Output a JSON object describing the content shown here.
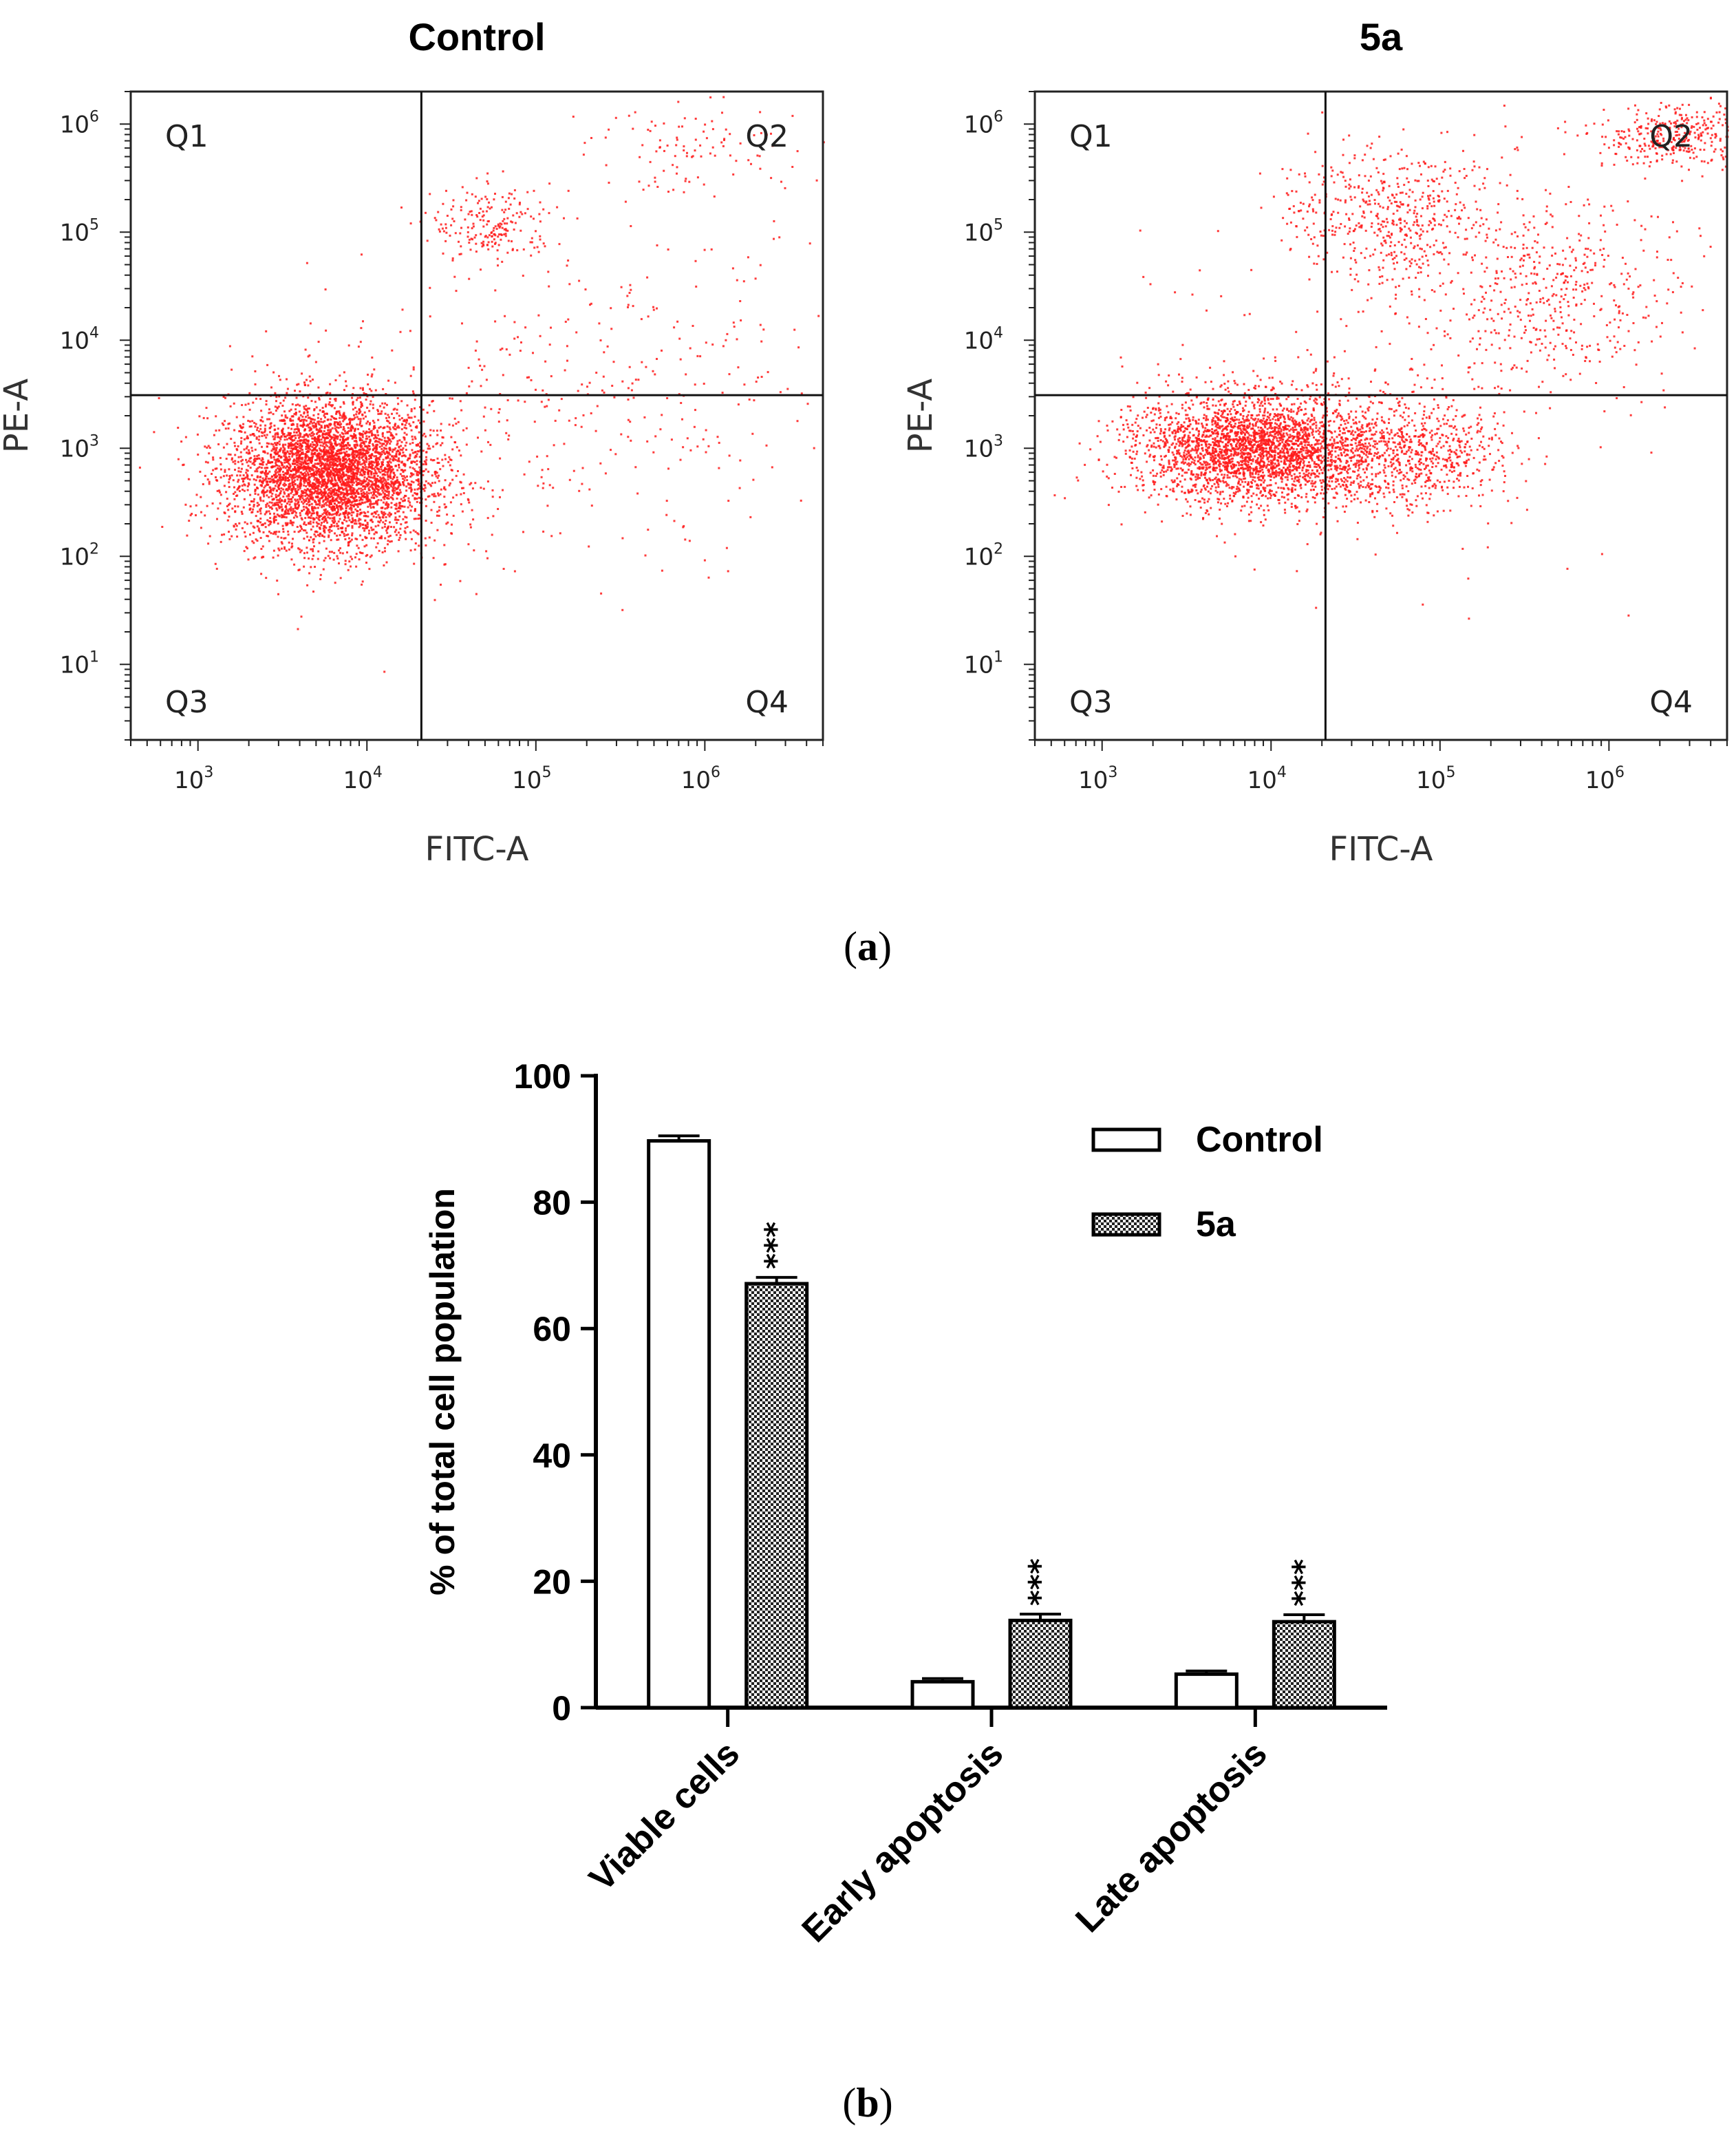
{
  "panel_a": {
    "label": "a",
    "plots": [
      {
        "title": "Control",
        "xlabel": "FITC-A",
        "ylabel": "PE-A",
        "quadrants": [
          "Q1",
          "Q2",
          "Q3",
          "Q4"
        ]
      },
      {
        "title": "5a",
        "xlabel": "FITC-A",
        "ylabel": "PE-A",
        "quadrants": [
          "Q1",
          "Q2",
          "Q3",
          "Q4"
        ]
      }
    ],
    "x_ticks": [
      "3",
      "4",
      "5",
      "6"
    ],
    "y_ticks": [
      "1",
      "2",
      "3",
      "4",
      "5",
      "6"
    ],
    "tick_base": "10",
    "dot_color": "#ff1a1a"
  },
  "panel_b": {
    "label": "b"
  },
  "chart_data": [
    {
      "type": "scatter",
      "title": "Control",
      "xlabel": "FITC-A",
      "ylabel": "PE-A",
      "xscale": "log",
      "yscale": "log",
      "xlim": [
        400,
        5000000
      ],
      "ylim": [
        2,
        2000000
      ],
      "gates": {
        "x": 21000,
        "y": 3100
      },
      "quadrant_labels": [
        "Q1",
        "Q2",
        "Q3",
        "Q4"
      ],
      "populations": [
        {
          "center": [
            6000,
            600
          ],
          "spread": [
            0.3,
            0.33
          ],
          "weight": 0.85
        },
        {
          "center": [
            55000,
            120000
          ],
          "spread": [
            0.18,
            0.18
          ],
          "weight": 0.04
        },
        {
          "center": [
            300000,
            3000
          ],
          "spread": [
            0.7,
            0.8
          ],
          "weight": 0.06
        },
        {
          "center": [
            1000000,
            600000
          ],
          "spread": [
            0.35,
            0.2
          ],
          "weight": 0.02
        },
        {
          "center": [
            20000,
            1000
          ],
          "spread": [
            0.6,
            0.7
          ],
          "weight": 0.03
        }
      ]
    },
    {
      "type": "scatter",
      "title": "5a",
      "xlabel": "FITC-A",
      "ylabel": "PE-A",
      "xscale": "log",
      "yscale": "log",
      "xlim": [
        400,
        5000000
      ],
      "ylim": [
        2,
        2000000
      ],
      "gates": {
        "x": 21000,
        "y": 3100
      },
      "quadrant_labels": [
        "Q1",
        "Q2",
        "Q3",
        "Q4"
      ],
      "populations": [
        {
          "center": [
            8000,
            1000
          ],
          "spread": [
            0.35,
            0.25
          ],
          "weight": 0.55
        },
        {
          "center": [
            60000,
            900
          ],
          "spread": [
            0.3,
            0.25
          ],
          "weight": 0.15
        },
        {
          "center": [
            50000,
            150000
          ],
          "spread": [
            0.3,
            0.3
          ],
          "weight": 0.1
        },
        {
          "center": [
            2500000,
            800000
          ],
          "spread": [
            0.25,
            0.15
          ],
          "weight": 0.07
        },
        {
          "center": [
            400000,
            30000
          ],
          "spread": [
            0.4,
            0.45
          ],
          "weight": 0.1
        },
        {
          "center": [
            30000,
            3000
          ],
          "spread": [
            0.8,
            0.9
          ],
          "weight": 0.03
        }
      ]
    },
    {
      "type": "bar",
      "ylabel": "% of total cell population",
      "ylim": [
        0,
        100
      ],
      "yticks": [
        "0",
        "20",
        "40",
        "60",
        "80",
        "100"
      ],
      "categories": [
        "Viable cells",
        "Early apoptosis",
        "Late apoptosis"
      ],
      "series": [
        {
          "name": "Control",
          "values": [
            89.7,
            4.1,
            5.3
          ],
          "errors": [
            0.8,
            0.5,
            0.5
          ],
          "fill": "#ffffff"
        },
        {
          "name": "5a",
          "values": [
            67.1,
            13.8,
            13.6
          ],
          "errors": [
            1.0,
            1.0,
            1.1
          ],
          "fill": "checker"
        }
      ],
      "significance": [
        "***",
        "***",
        "***"
      ],
      "legend": [
        "Control",
        "5a"
      ],
      "legend_position": "top-right",
      "grid": false
    }
  ]
}
